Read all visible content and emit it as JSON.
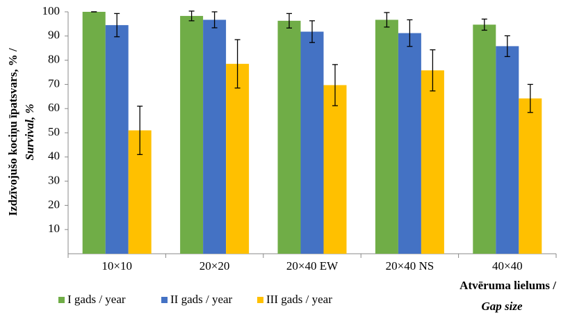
{
  "chart_data": {
    "type": "bar",
    "y_label_lines": [
      "Izdzīvojušo kociņu īpatsvars, % /",
      "Survival, %"
    ],
    "x_label_lines": [
      "Atvēruma lielums  /",
      "Gap size"
    ],
    "categories": [
      "10×10",
      "20×20",
      "20×40 EW",
      "20×40 NS",
      "40×40"
    ],
    "series": [
      {
        "name": "I gads / year",
        "color": "#70ad47",
        "values": [
          100,
          98.3,
          96.3,
          96.7,
          94.7
        ],
        "errors": [
          0,
          2,
          3,
          3,
          2.3
        ]
      },
      {
        "name": "II gads / year",
        "color": "#4472c4",
        "values": [
          94.5,
          96.7,
          91.8,
          91.2,
          85.8
        ],
        "errors": [
          4.8,
          3.3,
          4.5,
          5.5,
          4.3
        ]
      },
      {
        "name": "III gads / year",
        "color": "#ffc000",
        "values": [
          51,
          78.5,
          69.7,
          75.8,
          64.2
        ],
        "errors": [
          10,
          10,
          8.5,
          8.5,
          5.8
        ]
      }
    ],
    "ylim": [
      0,
      100
    ],
    "yticks": [
      10,
      20,
      30,
      40,
      50,
      60,
      70,
      80,
      90,
      100
    ],
    "grid": false
  }
}
